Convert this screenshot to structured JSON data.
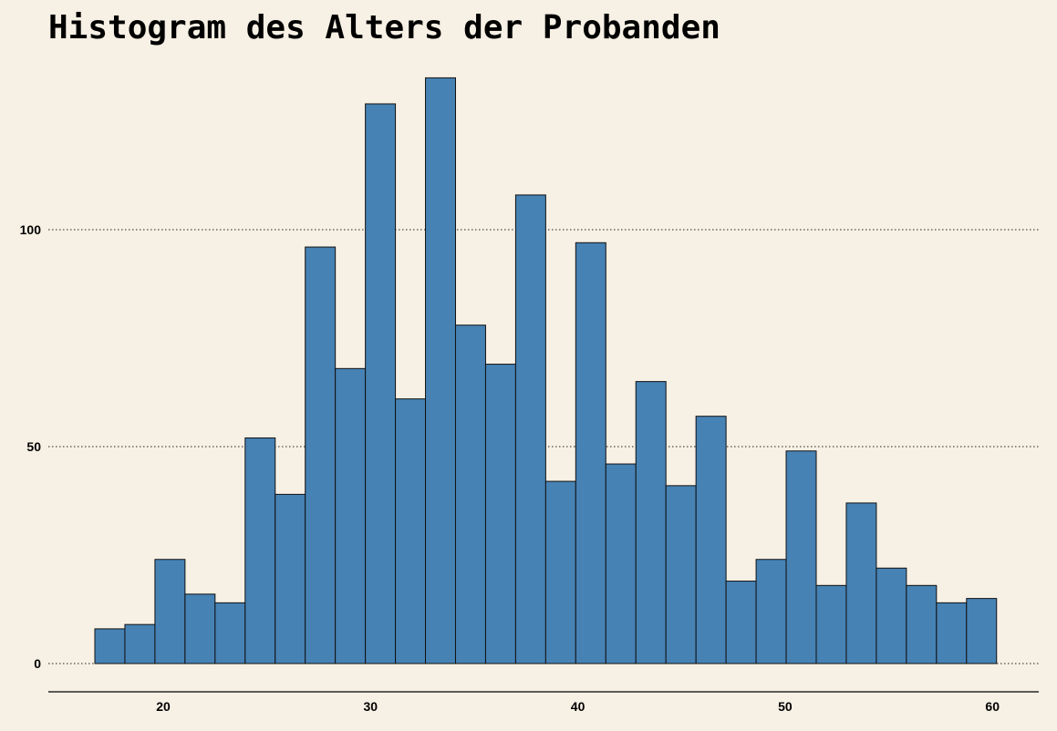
{
  "chart_data": {
    "type": "bar",
    "title": "Histogram des Alters der Probanden",
    "xlabel": "",
    "ylabel": "",
    "bin_width": 1.45,
    "bin_start": 16.7,
    "values": [
      8,
      9,
      24,
      16,
      14,
      52,
      39,
      96,
      68,
      129,
      61,
      135,
      78,
      69,
      108,
      42,
      97,
      46,
      65,
      41,
      57,
      19,
      24,
      49,
      18,
      37,
      22,
      18,
      14,
      15
    ],
    "x_ticks": [
      "20",
      "30",
      "40",
      "50",
      "60"
    ],
    "y_ticks": [
      "0",
      "50",
      "100"
    ],
    "xlim": [
      15,
      62.4
    ],
    "ylim": [
      0,
      135
    ],
    "grid": "horizontal dotted",
    "colors": {
      "bar_fill": "#4682B4",
      "bar_stroke": "#111111",
      "background": "#F7F0E4"
    }
  }
}
